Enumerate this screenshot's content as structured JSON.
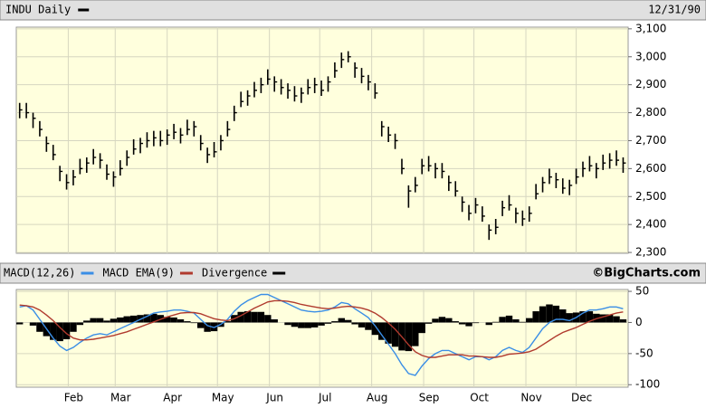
{
  "chart_data": [
    {
      "type": "ohlc",
      "title": "INDU Daily",
      "date": "12/31/90",
      "xlim": [
        0,
        365
      ],
      "ylim": [
        2297,
        3106
      ],
      "yticks": [
        {
          "value": 2300,
          "label": "2,300"
        },
        {
          "value": 2400,
          "label": "2,400"
        },
        {
          "value": 2500,
          "label": "2,500"
        },
        {
          "value": 2600,
          "label": "2,600"
        },
        {
          "value": 2700,
          "label": "2,700"
        },
        {
          "value": 2800,
          "label": "2,800"
        },
        {
          "value": 2900,
          "label": "2,900"
        },
        {
          "value": 3000,
          "label": "3,000"
        },
        {
          "value": 3100,
          "label": "3,100"
        }
      ],
      "grid": true,
      "x": [
        2,
        6,
        10,
        14,
        18,
        22,
        26,
        30,
        34,
        38,
        42,
        46,
        50,
        54,
        58,
        62,
        66,
        70,
        74,
        78,
        82,
        86,
        90,
        94,
        98,
        102,
        106,
        110,
        114,
        118,
        122,
        126,
        130,
        134,
        138,
        142,
        146,
        150,
        154,
        158,
        162,
        166,
        170,
        174,
        178,
        182,
        186,
        190,
        194,
        198,
        202,
        206,
        210,
        214,
        218,
        222,
        226,
        230,
        234,
        238,
        242,
        246,
        250,
        254,
        258,
        262,
        266,
        270,
        274,
        278,
        282,
        286,
        290,
        294,
        298,
        302,
        306,
        310,
        314,
        318,
        322,
        326,
        330,
        334,
        338,
        342,
        346,
        350,
        354,
        358,
        362
      ],
      "series": [
        {
          "name": "INDU Daily",
          "color": "#000000",
          "high": [
            2835,
            2835,
            2800,
            2770,
            2715,
            2685,
            2610,
            2580,
            2595,
            2635,
            2640,
            2670,
            2655,
            2615,
            2590,
            2630,
            2665,
            2705,
            2710,
            2730,
            2735,
            2735,
            2740,
            2760,
            2745,
            2775,
            2770,
            2720,
            2675,
            2695,
            2720,
            2770,
            2825,
            2875,
            2880,
            2910,
            2925,
            2955,
            2930,
            2920,
            2905,
            2895,
            2890,
            2920,
            2925,
            2915,
            2930,
            2980,
            3015,
            3020,
            2980,
            2960,
            2935,
            2905,
            2770,
            2750,
            2725,
            2635,
            2540,
            2570,
            2635,
            2645,
            2620,
            2620,
            2575,
            2555,
            2500,
            2470,
            2495,
            2465,
            2400,
            2420,
            2485,
            2505,
            2460,
            2450,
            2465,
            2545,
            2570,
            2600,
            2585,
            2565,
            2560,
            2600,
            2625,
            2645,
            2620,
            2650,
            2655,
            2665,
            2640
          ],
          "low": [
            2780,
            2780,
            2745,
            2715,
            2660,
            2630,
            2555,
            2525,
            2540,
            2580,
            2585,
            2615,
            2600,
            2560,
            2535,
            2575,
            2610,
            2650,
            2655,
            2675,
            2680,
            2680,
            2685,
            2705,
            2690,
            2720,
            2715,
            2665,
            2620,
            2640,
            2665,
            2715,
            2770,
            2820,
            2825,
            2855,
            2870,
            2900,
            2875,
            2865,
            2850,
            2840,
            2835,
            2865,
            2870,
            2860,
            2875,
            2925,
            2960,
            2980,
            2925,
            2905,
            2880,
            2850,
            2715,
            2695,
            2670,
            2580,
            2460,
            2515,
            2580,
            2590,
            2565,
            2565,
            2520,
            2500,
            2445,
            2415,
            2440,
            2410,
            2345,
            2365,
            2430,
            2450,
            2405,
            2395,
            2410,
            2490,
            2515,
            2545,
            2530,
            2510,
            2505,
            2545,
            2570,
            2590,
            2565,
            2595,
            2600,
            2610,
            2585
          ],
          "close": [
            2810,
            2800,
            2780,
            2740,
            2690,
            2650,
            2590,
            2550,
            2570,
            2600,
            2620,
            2640,
            2630,
            2580,
            2570,
            2600,
            2640,
            2670,
            2690,
            2700,
            2710,
            2700,
            2720,
            2730,
            2720,
            2740,
            2750,
            2690,
            2650,
            2660,
            2700,
            2740,
            2800,
            2840,
            2860,
            2880,
            2900,
            2920,
            2910,
            2890,
            2880,
            2860,
            2870,
            2890,
            2900,
            2880,
            2910,
            2950,
            2990,
            3000,
            2960,
            2930,
            2910,
            2870,
            2750,
            2720,
            2700,
            2600,
            2520,
            2540,
            2610,
            2610,
            2600,
            2590,
            2550,
            2520,
            2480,
            2440,
            2470,
            2430,
            2380,
            2390,
            2460,
            2470,
            2440,
            2420,
            2440,
            2510,
            2550,
            2570,
            2560,
            2530,
            2540,
            2570,
            2600,
            2610,
            2600,
            2620,
            2630,
            2630,
            2620
          ]
        }
      ]
    },
    {
      "type": "macd",
      "source": "©BigCharts.com",
      "xlim": [
        0,
        365
      ],
      "xticks": [
        {
          "value": 31,
          "label": "Feb"
        },
        {
          "value": 59,
          "label": "Mar"
        },
        {
          "value": 90,
          "label": "Apr"
        },
        {
          "value": 120,
          "label": "May"
        },
        {
          "value": 151,
          "label": "Jun"
        },
        {
          "value": 181,
          "label": "Jul"
        },
        {
          "value": 212,
          "label": "Aug"
        },
        {
          "value": 243,
          "label": "Sep"
        },
        {
          "value": 273,
          "label": "Oct"
        },
        {
          "value": 304,
          "label": "Nov"
        },
        {
          "value": 334,
          "label": "Dec"
        }
      ],
      "ylim": [
        -104,
        53
      ],
      "yticks": [
        -100,
        -50,
        0,
        50
      ],
      "grid": true,
      "series": [
        {
          "name": "MACD(12,26)",
          "color": "#3a8ee6",
          "kind": "line",
          "values": [
            25,
            27,
            20,
            5,
            -10,
            -25,
            -38,
            -45,
            -40,
            -32,
            -25,
            -20,
            -18,
            -20,
            -15,
            -10,
            -5,
            0,
            5,
            10,
            15,
            17,
            18,
            20,
            20,
            18,
            15,
            5,
            -5,
            -8,
            -3,
            5,
            18,
            28,
            35,
            40,
            45,
            45,
            40,
            35,
            30,
            25,
            20,
            18,
            17,
            18,
            20,
            25,
            32,
            30,
            22,
            15,
            8,
            -5,
            -20,
            -35,
            -50,
            -68,
            -82,
            -85,
            -70,
            -58,
            -50,
            -45,
            -45,
            -50,
            -55,
            -60,
            -55,
            -55,
            -60,
            -55,
            -45,
            -40,
            -45,
            -48,
            -40,
            -25,
            -10,
            0,
            5,
            5,
            3,
            8,
            15,
            20,
            20,
            22,
            25,
            25,
            22
          ]
        },
        {
          "name": "MACD EMA(9)",
          "color": "#b03a2e",
          "kind": "line",
          "values": [
            28,
            27,
            25,
            20,
            12,
            3,
            -8,
            -18,
            -25,
            -28,
            -28,
            -27,
            -25,
            -23,
            -21,
            -18,
            -15,
            -11,
            -7,
            -3,
            1,
            5,
            9,
            12,
            15,
            16,
            16,
            14,
            10,
            6,
            4,
            3,
            6,
            11,
            17,
            23,
            28,
            33,
            35,
            35,
            34,
            32,
            29,
            27,
            25,
            23,
            22,
            23,
            25,
            26,
            25,
            23,
            20,
            15,
            8,
            -1,
            -11,
            -23,
            -36,
            -47,
            -53,
            -56,
            -56,
            -54,
            -52,
            -52,
            -52,
            -54,
            -54,
            -55,
            -56,
            -56,
            -54,
            -51,
            -50,
            -49,
            -47,
            -43,
            -36,
            -29,
            -22,
            -16,
            -12,
            -8,
            -3,
            2,
            6,
            9,
            12,
            15,
            17
          ]
        },
        {
          "name": "Divergence",
          "color": "#000000",
          "kind": "bar",
          "values": [
            -3,
            0,
            -5,
            -15,
            -22,
            -28,
            -30,
            -27,
            -15,
            -4,
            3,
            7,
            7,
            3,
            6,
            8,
            10,
            11,
            12,
            13,
            14,
            12,
            9,
            8,
            5,
            2,
            -1,
            -9,
            -15,
            -14,
            -7,
            2,
            12,
            17,
            18,
            17,
            17,
            12,
            5,
            0,
            -4,
            -7,
            -9,
            -9,
            -8,
            -5,
            -2,
            2,
            7,
            4,
            -3,
            -8,
            -12,
            -20,
            -28,
            -34,
            -39,
            -45,
            -46,
            -38,
            -17,
            -2,
            6,
            9,
            7,
            2,
            -3,
            -6,
            -1,
            0,
            -4,
            1,
            9,
            11,
            5,
            1,
            7,
            18,
            26,
            29,
            27,
            21,
            15,
            16,
            18,
            18,
            14,
            13,
            13,
            10,
            5
          ]
        }
      ]
    }
  ]
}
